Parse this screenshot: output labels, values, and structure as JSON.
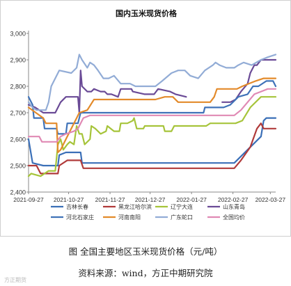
{
  "chart_data": {
    "type": "line",
    "title": "国内玉米现货价格",
    "x_labels": [
      "2021-09-27",
      "2021-10-27",
      "2021-11-27",
      "2021-12-27",
      "2022-01-27",
      "2022-02-27",
      "2022-03-27"
    ],
    "x_range": [
      "2021-09-27",
      "2022-03-31"
    ],
    "ylim": [
      2400,
      3000
    ],
    "y_ticks": [
      "2,400",
      "2,500",
      "2,600",
      "2,700",
      "2,800",
      "2,900",
      "3,000"
    ],
    "grid": false,
    "legend_position": "bottom",
    "series": [
      {
        "name": "吉林长春",
        "color": "#3a6fb7",
        "points": [
          [
            "2021-09-27",
            2600
          ],
          [
            "2021-09-30",
            2510
          ],
          [
            "2021-10-08",
            2500
          ],
          [
            "2021-10-19",
            2500
          ],
          [
            "2021-10-20",
            2540
          ],
          [
            "2021-10-25",
            2550
          ],
          [
            "2021-11-05",
            2550
          ],
          [
            "2021-11-06",
            2510
          ],
          [
            "2022-02-15",
            2510
          ],
          [
            "2022-02-28",
            2510
          ],
          [
            "2022-03-10",
            2560
          ],
          [
            "2022-03-20",
            2610
          ],
          [
            "2022-03-22",
            2670
          ],
          [
            "2022-03-24",
            2680
          ],
          [
            "2022-03-31",
            2680
          ]
        ]
      },
      {
        "name": "黑龙江哈尔滨",
        "color": "#b03a3a",
        "points": [
          [
            "2021-09-27",
            2500
          ],
          [
            "2021-10-03",
            2500
          ],
          [
            "2021-10-06",
            2470
          ],
          [
            "2021-10-19",
            2470
          ],
          [
            "2021-10-20",
            2500
          ],
          [
            "2021-10-26",
            2520
          ],
          [
            "2021-11-05",
            2520
          ],
          [
            "2021-11-07",
            2490
          ],
          [
            "2022-02-10",
            2490
          ],
          [
            "2022-02-28",
            2490
          ],
          [
            "2022-03-05",
            2520
          ],
          [
            "2022-03-12",
            2570
          ],
          [
            "2022-03-17",
            2640
          ],
          [
            "2022-03-20",
            2660
          ],
          [
            "2022-03-22",
            2640
          ],
          [
            "2022-03-31",
            2640
          ]
        ]
      },
      {
        "name": "辽宁大连",
        "color": "#a6c43a",
        "points": [
          [
            "2021-09-27",
            2460
          ],
          [
            "2021-09-29",
            2470
          ],
          [
            "2021-10-06",
            2460
          ],
          [
            "2021-10-12",
            2480
          ],
          [
            "2021-10-17",
            2480
          ],
          [
            "2021-10-19",
            2580
          ],
          [
            "2021-10-21",
            2600
          ],
          [
            "2021-10-23",
            2560
          ],
          [
            "2021-10-26",
            2580
          ],
          [
            "2021-10-28",
            2590
          ],
          [
            "2021-10-31",
            2580
          ],
          [
            "2021-11-02",
            2650
          ],
          [
            "2021-11-04",
            2620
          ],
          [
            "2021-11-06",
            2620
          ],
          [
            "2021-11-08",
            2580
          ],
          [
            "2021-11-12",
            2600
          ],
          [
            "2021-11-13",
            2650
          ],
          [
            "2021-11-16",
            2640
          ],
          [
            "2021-11-20",
            2620
          ],
          [
            "2021-11-24",
            2630
          ],
          [
            "2021-11-25",
            2650
          ],
          [
            "2021-11-30",
            2630
          ],
          [
            "2021-12-04",
            2630
          ],
          [
            "2021-12-05",
            2660
          ],
          [
            "2021-12-10",
            2660
          ],
          [
            "2021-12-14",
            2670
          ],
          [
            "2021-12-15",
            2680
          ],
          [
            "2021-12-17",
            2640
          ],
          [
            "2021-12-22",
            2640
          ],
          [
            "2021-12-23",
            2650
          ],
          [
            "2022-01-06",
            2650
          ],
          [
            "2022-01-07",
            2630
          ],
          [
            "2022-01-12",
            2630
          ],
          [
            "2022-01-14",
            2650
          ],
          [
            "2022-01-24",
            2650
          ],
          [
            "2022-02-07",
            2650
          ],
          [
            "2022-02-10",
            2660
          ],
          [
            "2022-03-01",
            2660
          ],
          [
            "2022-03-06",
            2670
          ],
          [
            "2022-03-12",
            2720
          ],
          [
            "2022-03-20",
            2760
          ],
          [
            "2022-03-31",
            2760
          ]
        ]
      },
      {
        "name": "山东青岛",
        "color": "#6a4a96",
        "points": [
          [
            "2021-09-27",
            2730
          ],
          [
            "2021-10-02",
            2720
          ],
          [
            "2021-10-08",
            2700
          ],
          [
            "2021-10-17",
            2700
          ],
          [
            "2021-10-21",
            2740
          ],
          [
            "2021-10-25",
            2760
          ],
          [
            "2021-11-03",
            2760
          ],
          [
            "2021-11-04",
            2700
          ],
          [
            "2021-11-05",
            2860
          ],
          [
            "2021-11-06",
            2800
          ],
          [
            "2021-11-10",
            2780
          ],
          [
            "2021-11-13",
            2780
          ],
          [
            "2021-11-15",
            2790
          ],
          [
            "2021-11-20",
            2780
          ],
          [
            "2021-11-23",
            2780
          ],
          [
            "2021-11-25",
            2770
          ],
          [
            "2021-11-28",
            2770
          ],
          [
            "2021-12-03",
            2760
          ],
          [
            "2021-12-05",
            2790
          ],
          [
            "2021-12-13",
            2790
          ],
          [
            "2021-12-14",
            2780
          ],
          [
            "2021-12-23",
            2770
          ],
          [
            "2021-12-30",
            2770
          ],
          [
            "2022-01-02",
            2790
          ],
          [
            "2022-01-11",
            2780
          ],
          [
            "2022-01-15",
            2770
          ],
          [
            "2022-01-23",
            2760
          ],
          null,
          [
            "2022-02-19",
            2740
          ],
          [
            "2022-02-25",
            2740
          ],
          [
            "2022-03-01",
            2750
          ],
          [
            "2022-03-05",
            2780
          ],
          [
            "2022-03-10",
            2810
          ],
          [
            "2022-03-12",
            2850
          ],
          [
            "2022-03-15",
            2880
          ],
          [
            "2022-03-17",
            2880
          ],
          [
            "2022-03-20",
            2900
          ],
          [
            "2022-03-31",
            2900
          ]
        ]
      },
      {
        "name": "河北石家庄",
        "color": "#3f72b8",
        "points": [
          [
            "2021-09-27",
            2760
          ],
          [
            "2021-09-30",
            2730
          ],
          [
            "2021-10-01",
            2680
          ],
          [
            "2021-10-08",
            2680
          ],
          [
            "2021-10-09",
            2640
          ],
          [
            "2021-10-18",
            2640
          ],
          [
            "2021-10-19",
            2620
          ],
          [
            "2021-10-25",
            2620
          ],
          [
            "2021-10-26",
            2660
          ],
          [
            "2021-11-03",
            2660
          ],
          [
            "2021-11-05",
            2700
          ],
          [
            "2022-02-05",
            2700
          ],
          [
            "2022-02-06",
            2720
          ],
          [
            "2022-02-20",
            2720
          ],
          [
            "2022-02-25",
            2730
          ],
          [
            "2022-03-03",
            2760
          ],
          [
            "2022-03-10",
            2770
          ],
          [
            "2022-03-14",
            2800
          ],
          [
            "2022-03-18",
            2800
          ],
          [
            "2022-03-24",
            2820
          ],
          [
            "2022-03-29",
            2820
          ],
          [
            "2022-03-31",
            2800
          ]
        ]
      },
      {
        "name": "河南南阳",
        "color": "#e38a2a",
        "points": [
          [
            "2021-09-27",
            2720
          ],
          [
            "2021-10-08",
            2680
          ],
          [
            "2021-10-10",
            2660
          ],
          [
            "2021-10-18",
            2660
          ],
          [
            "2021-10-19",
            2550
          ],
          [
            "2021-10-21",
            2560
          ],
          [
            "2021-10-25",
            2600
          ],
          [
            "2021-10-29",
            2640
          ],
          [
            "2021-11-02",
            2680
          ],
          [
            "2021-11-04",
            2700
          ],
          [
            "2021-11-10",
            2710
          ],
          [
            "2021-11-15",
            2750
          ],
          [
            "2021-12-31",
            2750
          ],
          [
            "2022-01-07",
            2760
          ],
          [
            "2022-01-13",
            2760
          ],
          [
            "2022-01-17",
            2740
          ],
          [
            "2022-02-10",
            2740
          ],
          [
            "2022-02-13",
            2760
          ],
          [
            "2022-02-15",
            2790
          ],
          [
            "2022-03-02",
            2790
          ],
          [
            "2022-03-06",
            2800
          ],
          [
            "2022-03-16",
            2820
          ],
          [
            "2022-03-22",
            2830
          ],
          [
            "2022-03-31",
            2830
          ]
        ]
      },
      {
        "name": "广东蛇口",
        "color": "#92acd6",
        "points": [
          [
            "2021-09-27",
            2740
          ],
          [
            "2021-09-30",
            2720
          ],
          [
            "2021-10-03",
            2710
          ],
          [
            "2021-10-10",
            2710
          ],
          [
            "2021-10-12",
            2740
          ],
          [
            "2021-10-14",
            2800
          ],
          [
            "2021-10-20",
            2860
          ],
          [
            "2021-10-29",
            2850
          ],
          [
            "2021-11-02",
            2870
          ],
          [
            "2021-11-04",
            2920
          ],
          [
            "2021-11-06",
            2900
          ],
          [
            "2021-11-10",
            2870
          ],
          [
            "2021-11-12",
            2890
          ],
          [
            "2021-11-15",
            2880
          ],
          [
            "2021-11-18",
            2860
          ],
          [
            "2021-11-22",
            2830
          ],
          [
            "2021-11-26",
            2830
          ],
          [
            "2021-11-30",
            2840
          ],
          [
            "2021-12-05",
            2810
          ],
          [
            "2021-12-12",
            2810
          ],
          [
            "2021-12-16",
            2800
          ],
          [
            "2021-12-25",
            2800
          ],
          [
            "2021-12-31",
            2800
          ],
          [
            "2022-01-05",
            2820
          ],
          [
            "2022-01-12",
            2850
          ],
          [
            "2022-01-17",
            2860
          ],
          [
            "2022-01-22",
            2860
          ],
          [
            "2022-01-26",
            2840
          ],
          [
            "2022-02-01",
            2830
          ],
          [
            "2022-02-06",
            2860
          ],
          [
            "2022-02-12",
            2880
          ],
          [
            "2022-02-14",
            2890
          ],
          [
            "2022-02-17",
            2880
          ],
          [
            "2022-02-22",
            2870
          ],
          [
            "2022-02-28",
            2870
          ],
          [
            "2022-03-03",
            2880
          ],
          [
            "2022-03-07",
            2890
          ],
          [
            "2022-03-13",
            2880
          ],
          [
            "2022-03-20",
            2900
          ],
          [
            "2022-03-25",
            2910
          ],
          [
            "2022-03-31",
            2920
          ]
        ]
      },
      {
        "name": "全国均价",
        "color": "#e089b4",
        "points": [
          [
            "2021-09-27",
            2610
          ],
          [
            "2021-10-05",
            2610
          ],
          [
            "2021-10-07",
            2590
          ],
          [
            "2021-10-18",
            2590
          ],
          [
            "2021-10-21",
            2610
          ],
          [
            "2021-10-25",
            2620
          ],
          [
            "2021-10-31",
            2630
          ],
          [
            "2021-11-03",
            2640
          ],
          [
            "2021-11-07",
            2680
          ],
          [
            "2021-11-12",
            2690
          ],
          [
            "2021-11-20",
            2690
          ],
          [
            "2021-12-15",
            2690
          ],
          [
            "2022-01-15",
            2690
          ],
          [
            "2022-02-15",
            2690
          ],
          [
            "2022-02-28",
            2690
          ],
          [
            "2022-03-05",
            2710
          ],
          [
            "2022-03-10",
            2740
          ],
          [
            "2022-03-15",
            2770
          ],
          [
            "2022-03-20",
            2780
          ],
          [
            "2022-03-25",
            2790
          ],
          [
            "2022-03-31",
            2790
          ]
        ]
      }
    ]
  },
  "captions": {
    "figure": "图   全国主要地区玉米现货价格（元/吨）",
    "source": "资料来源：wind，方正中期研究院"
  },
  "watermark": "方正期货"
}
